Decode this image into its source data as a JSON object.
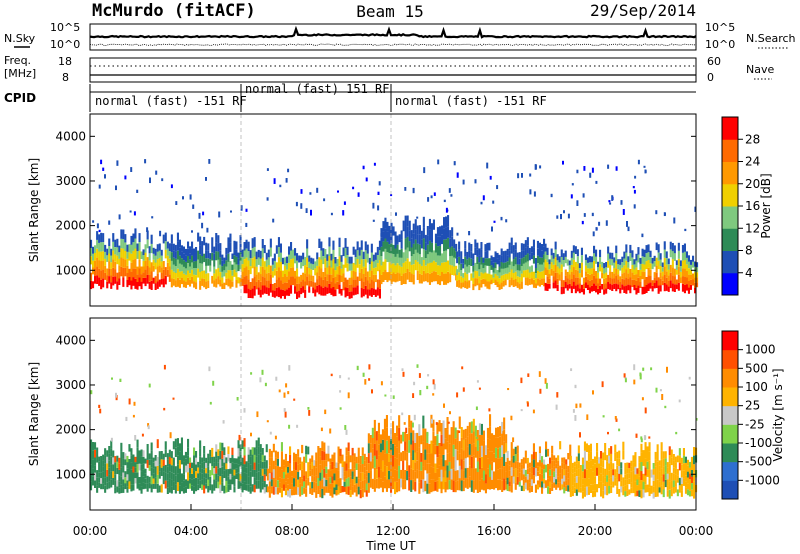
{
  "header": {
    "station": "McMurdo (fitACF)",
    "beam": "Beam 15",
    "date": "29/Sep/2014"
  },
  "top_panels": {
    "nsky_label": "N.Sky",
    "nsearch_label": "N.Search",
    "noise_ticks_left": [
      "10^5",
      "10^0"
    ],
    "noise_ticks_right": [
      "10^5",
      "10^0"
    ],
    "freq_label_1": "Freq.",
    "freq_label_2": "[MHz]",
    "freq_ticks": [
      "18",
      "8"
    ],
    "nave_label": "Nave",
    "nave_ticks": [
      "60",
      "0"
    ],
    "cpid_label": "CPID",
    "cpid_segments": [
      "normal (fast) -151 RF",
      "normal (fast) 151 RF",
      "normal (fast) -151 RF"
    ]
  },
  "chart_data": [
    {
      "type": "heatmap",
      "name": "power",
      "ylabel": "Slant Range [km]",
      "y_ticks": [
        "1000",
        "2000",
        "3000",
        "4000"
      ],
      "ylim": [
        200,
        4500
      ],
      "colorbar_label": "Power [dB]",
      "colorbar_ticks": [
        "4",
        "8",
        "12",
        "16",
        "20",
        "24",
        "28"
      ],
      "colorbar_colors": [
        "#0000ff",
        "#1e4fb5",
        "#2e8b57",
        "#7fc97f",
        "#f0d000",
        "#ff9900",
        "#ff6a00",
        "#ff0000"
      ],
      "regions": [
        {
          "x": [
            0.0,
            3.2
          ],
          "range": [
            600,
            1700
          ],
          "level": "high"
        },
        {
          "x": [
            3.2,
            6.0
          ],
          "range": [
            600,
            1600
          ],
          "level": "mid"
        },
        {
          "x": [
            6.0,
            11.5
          ],
          "range": [
            400,
            1500
          ],
          "level": "high"
        },
        {
          "x": [
            11.5,
            14.5
          ],
          "range": [
            700,
            2000
          ],
          "level": "mid"
        },
        {
          "x": [
            14.5,
            18.0
          ],
          "range": [
            600,
            1500
          ],
          "level": "mid"
        },
        {
          "x": [
            18.0,
            24.0
          ],
          "range": [
            500,
            1400
          ],
          "level": "high"
        }
      ]
    },
    {
      "type": "heatmap",
      "name": "velocity",
      "ylabel": "Slant Range [km]",
      "xlabel": "Time UT",
      "x_ticks": [
        "00:00",
        "04:00",
        "08:00",
        "12:00",
        "16:00",
        "20:00",
        "00:00"
      ],
      "xlim": [
        0,
        24
      ],
      "y_ticks": [
        "1000",
        "2000",
        "3000",
        "4000"
      ],
      "ylim": [
        200,
        4500
      ],
      "colorbar_label": "Velocity [m s⁻¹]",
      "colorbar_ticks": [
        "1000",
        "500",
        "100",
        "25",
        "-25",
        "-100",
        "-500",
        "-1000"
      ],
      "colorbar_colors": [
        "#1e4fb5",
        "#2e6fd0",
        "#2e8b57",
        "#7fd34a",
        "#c8c8c8",
        "#ffb300",
        "#ff8c00",
        "#ff5000",
        "#ff0000"
      ],
      "regions": [
        {
          "x": [
            0.0,
            7.0
          ],
          "range": [
            600,
            1600
          ],
          "dominant": "#2e8b57"
        },
        {
          "x": [
            7.0,
            11.0
          ],
          "range": [
            500,
            1500
          ],
          "dominant": "#ff8c00"
        },
        {
          "x": [
            11.0,
            16.5
          ],
          "range": [
            600,
            2100
          ],
          "dominant": "#ff8c00"
        },
        {
          "x": [
            16.5,
            19.0
          ],
          "range": [
            600,
            1500
          ],
          "dominant": "#ff8c00"
        },
        {
          "x": [
            19.0,
            24.0
          ],
          "range": [
            500,
            1500
          ],
          "dominant": "#ffb300"
        }
      ]
    }
  ]
}
